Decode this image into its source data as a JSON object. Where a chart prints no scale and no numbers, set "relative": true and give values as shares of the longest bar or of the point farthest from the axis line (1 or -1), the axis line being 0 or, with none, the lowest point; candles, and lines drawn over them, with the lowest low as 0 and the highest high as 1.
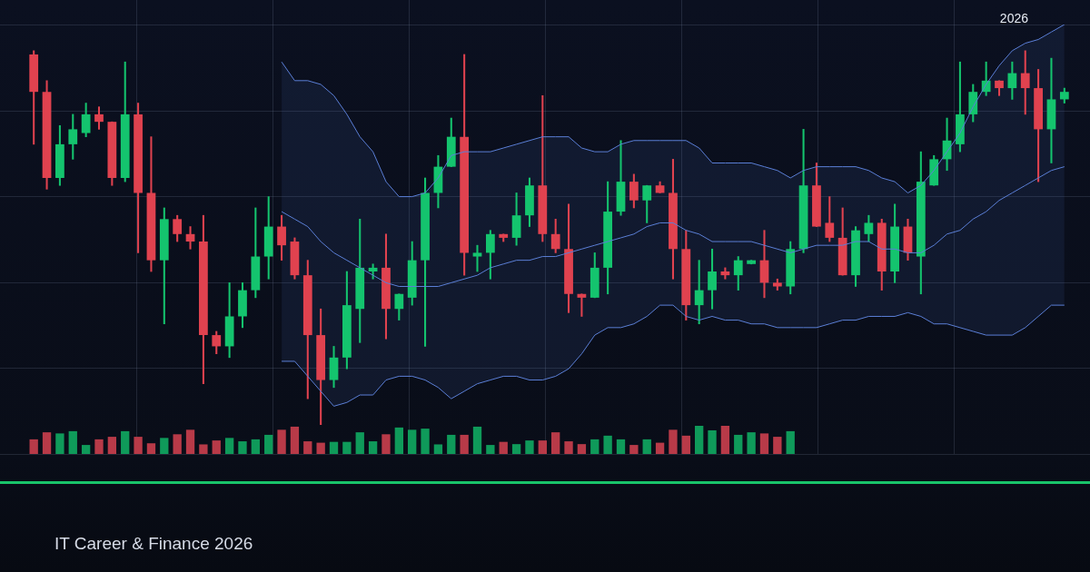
{
  "chart_data": [
    {
      "type": "candlestick",
      "relative": true,
      "grid": true,
      "legend": false,
      "marker": "none",
      "categories": [
        null,
        null,
        null,
        null,
        null,
        null,
        null,
        null,
        null,
        null,
        null,
        null,
        null,
        null,
        null,
        null,
        null,
        null,
        null,
        null,
        null,
        null,
        null,
        null,
        null,
        null,
        null,
        null,
        null,
        null,
        null,
        null,
        null,
        null,
        null,
        null,
        null,
        null,
        null,
        null,
        null,
        null,
        null,
        null,
        null,
        null,
        null,
        null,
        null,
        null,
        null,
        null,
        null,
        null,
        null,
        null,
        null,
        null,
        null,
        null,
        null,
        null,
        null,
        null,
        null,
        null,
        null,
        null,
        null,
        null,
        null,
        null,
        null,
        null,
        null,
        null,
        null,
        null,
        null,
        null
      ],
      "ohlc": [
        [
          0.99,
          1,
          0.75,
          0.89
        ],
        [
          0.89,
          0.92,
          0.63,
          0.66
        ],
        [
          0.66,
          0.8,
          0.64,
          0.75
        ],
        [
          0.75,
          0.83,
          0.71,
          0.79
        ],
        [
          0.78,
          0.86,
          0.77,
          0.83
        ],
        [
          0.83,
          0.85,
          0.79,
          0.81
        ],
        [
          0.81,
          0.81,
          0.64,
          0.66
        ],
        [
          0.66,
          0.97,
          0.65,
          0.83
        ],
        [
          0.83,
          0.86,
          0.46,
          0.62
        ],
        [
          0.62,
          0.77,
          0.41,
          0.44
        ],
        [
          0.44,
          0.58,
          0.27,
          0.55
        ],
        [
          0.55,
          0.56,
          0.49,
          0.51
        ],
        [
          0.51,
          0.53,
          0.47,
          0.49
        ],
        [
          0.49,
          0.56,
          0.11,
          0.24
        ],
        [
          0.24,
          0.25,
          0.19,
          0.21
        ],
        [
          0.21,
          0.38,
          0.18,
          0.29
        ],
        [
          0.29,
          0.38,
          0.26,
          0.36
        ],
        [
          0.36,
          0.58,
          0.34,
          0.45
        ],
        [
          0.45,
          0.61,
          0.39,
          0.53
        ],
        [
          0.53,
          0.56,
          0.44,
          0.48
        ],
        [
          0.49,
          0.5,
          0.39,
          0.4
        ],
        [
          0.4,
          0.44,
          0.07,
          0.24
        ],
        [
          0.24,
          0.31,
          0,
          0.12
        ],
        [
          0.12,
          0.21,
          0.1,
          0.18
        ],
        [
          0.18,
          0.41,
          0.15,
          0.32
        ],
        [
          0.31,
          0.55,
          0.22,
          0.42
        ],
        [
          0.41,
          0.43,
          0.39,
          0.42
        ],
        [
          0.42,
          0.51,
          0.23,
          0.31
        ],
        [
          0.31,
          0.35,
          0.28,
          0.35
        ],
        [
          0.34,
          0.49,
          0.32,
          0.44
        ],
        [
          0.44,
          0.66,
          0.21,
          0.62
        ],
        [
          0.62,
          0.72,
          0.58,
          0.69
        ],
        [
          0.69,
          0.82,
          0.69,
          0.77
        ],
        [
          0.77,
          0.99,
          0.4,
          0.46
        ],
        [
          0.45,
          0.48,
          0.41,
          0.46
        ],
        [
          0.46,
          0.52,
          0.39,
          0.51
        ],
        [
          0.51,
          0.51,
          0.49,
          0.5
        ],
        [
          0.5,
          0.62,
          0.48,
          0.56
        ],
        [
          0.56,
          0.66,
          0.53,
          0.64
        ],
        [
          0.64,
          0.88,
          0.49,
          0.51
        ],
        [
          0.51,
          0.55,
          0.46,
          0.47
        ],
        [
          0.47,
          0.59,
          0.3,
          0.35
        ],
        [
          0.35,
          0.35,
          0.29,
          0.34
        ],
        [
          0.34,
          0.46,
          0.34,
          0.42
        ],
        [
          0.42,
          0.65,
          0.35,
          0.57
        ],
        [
          0.57,
          0.76,
          0.56,
          0.65
        ],
        [
          0.65,
          0.67,
          0.58,
          0.6
        ],
        [
          0.6,
          0.64,
          0.54,
          0.64
        ],
        [
          0.64,
          0.65,
          0.62,
          0.62
        ],
        [
          0.62,
          0.71,
          0.39,
          0.47
        ],
        [
          0.47,
          0.52,
          0.28,
          0.32
        ],
        [
          0.32,
          0.44,
          0.27,
          0.36
        ],
        [
          0.36,
          0.47,
          0.31,
          0.41
        ],
        [
          0.41,
          0.42,
          0.39,
          0.4
        ],
        [
          0.4,
          0.45,
          0.36,
          0.44
        ],
        [
          0.43,
          0.44,
          0.43,
          0.44
        ],
        [
          0.44,
          0.52,
          0.34,
          0.38
        ],
        [
          0.38,
          0.39,
          0.36,
          0.37
        ],
        [
          0.37,
          0.49,
          0.35,
          0.47
        ],
        [
          0.47,
          0.79,
          0.46,
          0.64
        ],
        [
          0.64,
          0.7,
          0.53,
          0.53
        ],
        [
          0.54,
          0.61,
          0.49,
          0.5
        ],
        [
          0.5,
          0.58,
          0.4,
          0.4
        ],
        [
          0.4,
          0.53,
          0.37,
          0.52
        ],
        [
          0.51,
          0.56,
          0.49,
          0.54
        ],
        [
          0.54,
          0.55,
          0.36,
          0.41
        ],
        [
          0.41,
          0.59,
          0.38,
          0.53
        ],
        [
          0.53,
          0.55,
          0.44,
          0.46
        ],
        [
          0.45,
          0.73,
          0.35,
          0.65
        ],
        [
          0.64,
          0.72,
          0.64,
          0.71
        ],
        [
          0.71,
          0.82,
          0.68,
          0.76
        ],
        [
          0.75,
          0.97,
          0.73,
          0.83
        ],
        [
          0.83,
          0.91,
          0.81,
          0.89
        ],
        [
          0.89,
          0.97,
          0.88,
          0.92
        ],
        [
          0.92,
          0.92,
          0.88,
          0.9
        ],
        [
          0.9,
          0.97,
          0.87,
          0.94
        ],
        [
          0.94,
          1,
          0.83,
          0.9
        ],
        [
          0.9,
          0.95,
          0.65,
          0.79
        ],
        [
          0.79,
          0.98,
          0.7,
          0.87
        ],
        [
          0.87,
          0.9,
          0.86,
          0.89
        ]
      ],
      "colors": [
        "#e0424f",
        "#e0424f",
        "#14c46e",
        "#14c46e",
        "#14c46e",
        "#e0424f",
        "#e0424f",
        "#14c46e",
        "#e0424f",
        "#e0424f",
        "#14c46e",
        "#e0424f",
        "#e0424f",
        "#e0424f",
        "#e0424f",
        "#14c46e",
        "#14c46e",
        "#14c46e",
        "#14c46e",
        "#e0424f",
        "#e0424f",
        "#e0424f",
        "#e0424f",
        "#14c46e",
        "#14c46e",
        "#14c46e",
        "#14c46e",
        "#e0424f",
        "#14c46e",
        "#14c46e",
        "#14c46e",
        "#14c46e",
        "#14c46e",
        "#e0424f",
        "#14c46e",
        "#14c46e",
        "#e0424f",
        "#14c46e",
        "#14c46e",
        "#e0424f",
        "#e0424f",
        "#e0424f",
        "#e0424f",
        "#14c46e",
        "#14c46e",
        "#14c46e",
        "#e0424f",
        "#14c46e",
        "#e0424f",
        "#e0424f",
        "#e0424f",
        "#14c46e",
        "#14c46e",
        "#e0424f",
        "#14c46e",
        "#14c46e",
        "#e0424f",
        "#e0424f",
        "#14c46e",
        "#14c46e",
        "#e0424f",
        "#e0424f",
        "#e0424f",
        "#14c46e",
        "#14c46e",
        "#e0424f",
        "#14c46e",
        "#e0424f",
        "#14c46e",
        "#14c46e",
        "#14c46e",
        "#14c46e",
        "#14c46e",
        "#14c46e",
        "#e0424f",
        "#14c46e",
        "#e0424f",
        "#e0424f",
        "#14c46e",
        "#14c46e"
      ],
      "series": [
        {
          "type": "line",
          "color": "#5b7fd6",
          "values": [
            null,
            null,
            null,
            null,
            null,
            null,
            null,
            null,
            null,
            null,
            null,
            null,
            null,
            null,
            null,
            null,
            null,
            null,
            null,
            0.57,
            0.55,
            0.53,
            0.49,
            0.46,
            0.44,
            0.42,
            0.4,
            0.38,
            0.37,
            0.37,
            0.37,
            0.37,
            0.38,
            0.39,
            0.4,
            0.42,
            0.43,
            0.44,
            0.44,
            0.45,
            0.45,
            0.46,
            0.47,
            0.48,
            0.49,
            0.5,
            0.51,
            0.53,
            0.54,
            0.54,
            0.52,
            0.51,
            0.49,
            0.49,
            0.49,
            0.49,
            0.48,
            0.47,
            0.46,
            0.47,
            0.48,
            0.48,
            0.48,
            0.49,
            0.49,
            0.47,
            0.47,
            0.46,
            0.46,
            0.48,
            0.51,
            0.52,
            0.55,
            0.57,
            0.6,
            0.62,
            0.64,
            0.66,
            0.68,
            0.69
          ],
          "lower": [
            null,
            null,
            null,
            null,
            null,
            null,
            null,
            null,
            null,
            null,
            null,
            null,
            null,
            null,
            null,
            null,
            null,
            null,
            null,
            0.17,
            0.17,
            0.13,
            0.09,
            0.05,
            0.06,
            0.08,
            0.08,
            0.12,
            0.13,
            0.13,
            0.12,
            0.1,
            0.07,
            0.09,
            0.11,
            0.12,
            0.13,
            0.13,
            0.12,
            0.12,
            0.13,
            0.15,
            0.19,
            0.24,
            0.26,
            0.26,
            0.27,
            0.29,
            0.32,
            0.32,
            0.29,
            0.28,
            0.29,
            0.28,
            0.28,
            0.27,
            0.27,
            0.26,
            0.26,
            0.26,
            0.26,
            0.27,
            0.28,
            0.28,
            0.29,
            0.29,
            0.29,
            0.3,
            0.29,
            0.27,
            0.27,
            0.26,
            0.25,
            0.24,
            0.24,
            0.24,
            0.26,
            0.29,
            0.32,
            0.32
          ],
          "upper": [
            null,
            null,
            null,
            null,
            null,
            null,
            null,
            null,
            null,
            null,
            null,
            null,
            null,
            null,
            null,
            null,
            null,
            null,
            null,
            0.97,
            0.92,
            0.92,
            0.91,
            0.88,
            0.83,
            0.77,
            0.73,
            0.65,
            0.61,
            0.61,
            0.62,
            0.66,
            0.72,
            0.73,
            0.73,
            0.73,
            0.74,
            0.75,
            0.76,
            0.77,
            0.77,
            0.77,
            0.74,
            0.73,
            0.73,
            0.75,
            0.76,
            0.76,
            0.76,
            0.76,
            0.76,
            0.74,
            0.7,
            0.7,
            0.7,
            0.7,
            0.69,
            0.68,
            0.66,
            0.68,
            0.69,
            0.69,
            0.69,
            0.69,
            0.68,
            0.66,
            0.65,
            0.62,
            0.64,
            0.68,
            0.73,
            0.78,
            0.85,
            0.91,
            0.96,
            1,
            1.02,
            1.03,
            1.05,
            1.07
          ]
        },
        {
          "type": "line",
          "color": "#5b7fd6",
          "values": [
            null,
            null,
            null,
            null,
            null,
            null,
            null,
            null,
            null,
            null,
            null,
            null,
            null,
            null,
            null,
            null,
            null,
            null,
            null,
            0.97,
            0.92,
            0.92,
            0.91,
            0.88,
            0.83,
            0.77,
            0.73,
            0.65,
            0.61,
            0.61,
            0.62,
            0.66,
            0.72,
            0.73,
            0.73,
            0.73,
            0.74,
            0.75,
            0.76,
            0.77,
            0.77,
            0.77,
            0.74,
            0.73,
            0.73,
            0.75,
            0.76,
            0.76,
            0.76,
            0.76,
            0.76,
            0.74,
            0.7,
            0.7,
            0.7,
            0.7,
            0.69,
            0.68,
            0.66,
            0.68,
            0.69,
            0.69,
            0.69,
            0.69,
            0.68,
            0.66,
            0.65,
            0.62,
            0.64,
            0.68,
            0.73,
            0.78,
            0.85,
            0.91,
            0.96,
            1,
            1.02,
            1.03,
            1.05,
            1.07
          ]
        },
        {
          "type": "line",
          "color": "#5b7fd6",
          "values": [
            null,
            null,
            null,
            null,
            null,
            null,
            null,
            null,
            null,
            null,
            null,
            null,
            null,
            null,
            null,
            null,
            null,
            null,
            null,
            0.17,
            0.17,
            0.13,
            0.09,
            0.05,
            0.06,
            0.08,
            0.08,
            0.12,
            0.13,
            0.13,
            0.12,
            0.1,
            0.07,
            0.09,
            0.11,
            0.12,
            0.13,
            0.13,
            0.12,
            0.12,
            0.13,
            0.15,
            0.19,
            0.24,
            0.26,
            0.26,
            0.27,
            0.29,
            0.32,
            0.32,
            0.29,
            0.28,
            0.29,
            0.28,
            0.28,
            0.27,
            0.27,
            0.26,
            0.26,
            0.26,
            0.26,
            0.27,
            0.28,
            0.28,
            0.29,
            0.29,
            0.29,
            0.3,
            0.29,
            0.27,
            0.27,
            0.26,
            0.25,
            0.24,
            0.24,
            0.24,
            0.26,
            0.29,
            0.32,
            0.32
          ]
        }
      ],
      "annotations": [
        "2026",
        "IT Career & Finance 2026"
      ]
    },
    {
      "type": "bar",
      "relative": true,
      "legend": false,
      "categories": [
        null,
        null,
        null,
        null,
        null,
        null,
        null,
        null,
        null,
        null,
        null,
        null,
        null,
        null,
        null,
        null,
        null,
        null,
        null,
        null,
        null,
        null,
        null,
        null,
        null,
        null,
        null,
        null,
        null,
        null,
        null,
        null,
        null,
        null,
        null,
        null,
        null,
        null,
        null,
        null,
        null,
        null,
        null,
        null,
        null,
        null,
        null,
        null,
        null,
        null,
        null,
        null,
        null,
        null,
        null,
        null,
        null,
        null,
        null,
        null,
        null,
        null,
        null,
        null,
        null,
        null,
        null,
        null,
        null,
        null,
        null,
        null,
        null,
        null,
        null,
        null,
        null,
        null,
        null,
        null
      ],
      "values": [
        0.52,
        0.77,
        0.73,
        0.81,
        0.32,
        0.52,
        0.61,
        0.81,
        0.61,
        0.38,
        0.57,
        0.7,
        0.86,
        0.34,
        0.48,
        0.57,
        0.45,
        0.52,
        0.68,
        0.86,
        0.97,
        0.45,
        0.4,
        0.43,
        0.43,
        0.77,
        0.45,
        0.7,
        0.94,
        0.86,
        0.9,
        0.34,
        0.68,
        0.68,
        0.97,
        0.32,
        0.43,
        0.35,
        0.48,
        0.48,
        0.77,
        0.45,
        0.35,
        0.52,
        0.65,
        0.52,
        0.32,
        0.52,
        0.4,
        0.86,
        0.65,
        1,
        0.84,
        1,
        0.68,
        0.77,
        0.73,
        0.61,
        0.81,
        null,
        null,
        null,
        null,
        null,
        null,
        null,
        null,
        null,
        null,
        null,
        null,
        null,
        null,
        null,
        null,
        null,
        null,
        null,
        null,
        null
      ],
      "colors": [
        "#b83a48",
        "#b83a48",
        "#0f9a5a",
        "#0f9a5a",
        "#0f9a5a",
        "#b83a48",
        "#b83a48",
        "#0f9a5a",
        "#b83a48",
        "#b83a48",
        "#0f9a5a",
        "#b83a48",
        "#b83a48",
        "#b83a48",
        "#b83a48",
        "#0f9a5a",
        "#0f9a5a",
        "#0f9a5a",
        "#0f9a5a",
        "#b83a48",
        "#b83a48",
        "#b83a48",
        "#b83a48",
        "#0f9a5a",
        "#0f9a5a",
        "#0f9a5a",
        "#0f9a5a",
        "#b83a48",
        "#0f9a5a",
        "#0f9a5a",
        "#0f9a5a",
        "#0f9a5a",
        "#0f9a5a",
        "#b83a48",
        "#0f9a5a",
        "#0f9a5a",
        "#b83a48",
        "#0f9a5a",
        "#0f9a5a",
        "#b83a48",
        "#b83a48",
        "#b83a48",
        "#b83a48",
        "#0f9a5a",
        "#0f9a5a",
        "#0f9a5a",
        "#b83a48",
        "#0f9a5a",
        "#b83a48",
        "#b83a48",
        "#b83a48",
        "#0f9a5a",
        "#0f9a5a",
        "#b83a48",
        "#0f9a5a",
        "#0f9a5a",
        "#b83a48",
        "#b83a48",
        "#0f9a5a",
        "#0f9a5a",
        "#b83a48",
        "#b83a48",
        "#b83a48",
        "#0f9a5a",
        "#0f9a5a",
        "#b83a48",
        "#0f9a5a",
        "#b83a48",
        "#0f9a5a",
        "#0f9a5a",
        "#0f9a5a",
        "#0f9a5a",
        "#0f9a5a",
        "#0f9a5a",
        "#b83a48",
        "#0f9a5a",
        "#b83a48",
        "#b83a48",
        "#0f9a5a",
        "#0f9a5a"
      ]
    }
  ]
}
